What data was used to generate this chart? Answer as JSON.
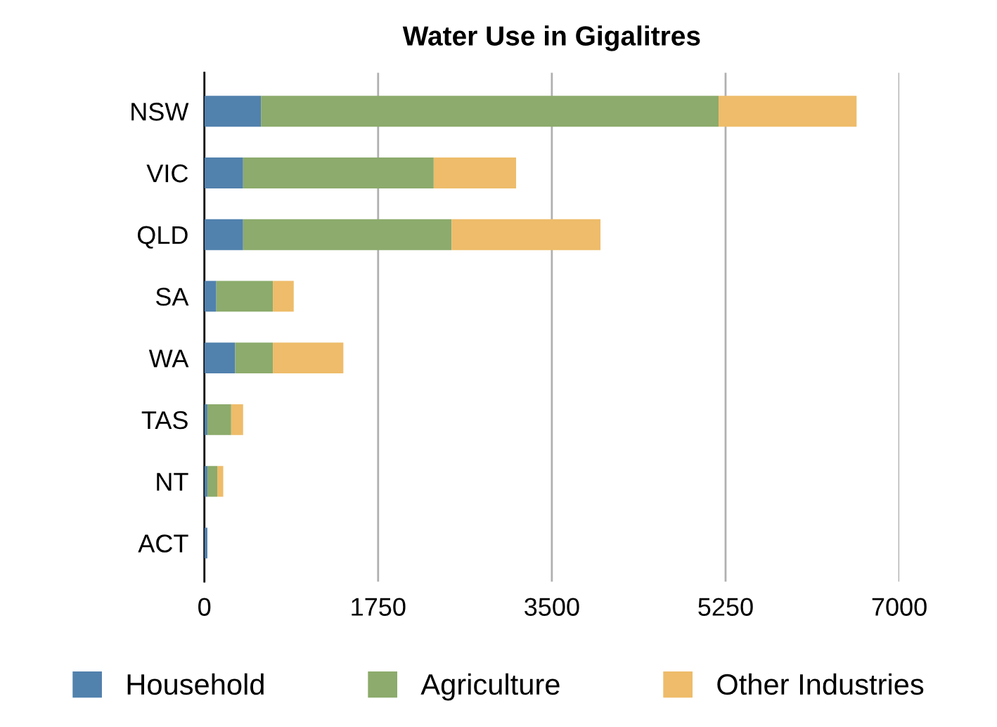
{
  "chart_data": {
    "type": "bar",
    "title": "Water Use in Gigalitres",
    "orientation": "horizontal",
    "stacked": true,
    "categories": [
      "NSW",
      "VIC",
      "QLD",
      "SA",
      "WA",
      "TAS",
      "NT",
      "ACT"
    ],
    "series": [
      {
        "name": "Household",
        "color": "#5181ad",
        "values": [
          570,
          390,
          390,
          120,
          310,
          30,
          30,
          30
        ]
      },
      {
        "name": "Agriculture",
        "color": "#8cab6c",
        "values": [
          4610,
          1920,
          2100,
          570,
          380,
          240,
          100,
          0
        ]
      },
      {
        "name": "Other Industries",
        "color": "#eebc6a",
        "values": [
          1390,
          830,
          1500,
          210,
          710,
          120,
          60,
          0
        ]
      }
    ],
    "xlim": [
      0,
      7000
    ],
    "xticks": [
      0,
      1750,
      3500,
      5250,
      7000
    ],
    "grid": "x",
    "legend": "bottom"
  }
}
